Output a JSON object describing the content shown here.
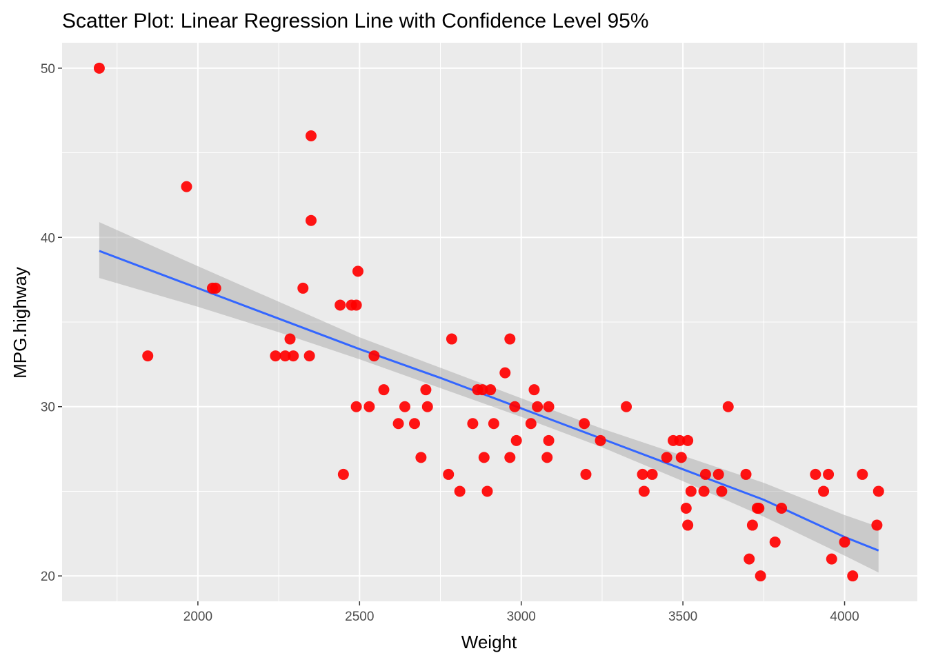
{
  "chart_data": {
    "type": "scatter",
    "title": "Scatter Plot: Linear Regression Line with Confidence Level 95%",
    "xlabel": "Weight",
    "ylabel": "MPG.highway",
    "xlim": [
      1580,
      4225
    ],
    "ylim": [
      18.5,
      51.5
    ],
    "x_ticks": [
      2000,
      2500,
      3000,
      3500,
      4000
    ],
    "y_ticks": [
      20,
      30,
      40,
      50
    ],
    "x_tick_labels": [
      "2000",
      "2500",
      "3000",
      "3500",
      "4000"
    ],
    "y_tick_labels": [
      "20",
      "30",
      "40",
      "50"
    ],
    "grid": true,
    "legend": "none",
    "panel_background": "#ebebeb",
    "grid_color": "#ffffff",
    "point_color": "#ff0000",
    "line_color": "#3366ff",
    "band_color": "#999999",
    "points": [
      [
        1695,
        50
      ],
      [
        1845,
        33
      ],
      [
        1965,
        43
      ],
      [
        2045,
        37
      ],
      [
        2055,
        37
      ],
      [
        2240,
        33
      ],
      [
        2270,
        33
      ],
      [
        2285,
        34
      ],
      [
        2295,
        33
      ],
      [
        2325,
        37
      ],
      [
        2345,
        33
      ],
      [
        2350,
        46
      ],
      [
        2350,
        41
      ],
      [
        2440,
        36
      ],
      [
        2450,
        26
      ],
      [
        2475,
        36
      ],
      [
        2490,
        36
      ],
      [
        2490,
        30
      ],
      [
        2495,
        38
      ],
      [
        2530,
        30
      ],
      [
        2545,
        33
      ],
      [
        2575,
        31
      ],
      [
        2620,
        29
      ],
      [
        2640,
        30
      ],
      [
        2670,
        29
      ],
      [
        2690,
        27
      ],
      [
        2705,
        31
      ],
      [
        2710,
        30
      ],
      [
        2775,
        26
      ],
      [
        2785,
        34
      ],
      [
        2810,
        25
      ],
      [
        2850,
        29
      ],
      [
        2865,
        31
      ],
      [
        2880,
        31
      ],
      [
        2885,
        27
      ],
      [
        2895,
        25
      ],
      [
        2905,
        31
      ],
      [
        2915,
        29
      ],
      [
        2950,
        32
      ],
      [
        2965,
        34
      ],
      [
        2965,
        27
      ],
      [
        2980,
        30
      ],
      [
        2985,
        28
      ],
      [
        3030,
        29
      ],
      [
        3040,
        31
      ],
      [
        3050,
        30
      ],
      [
        3080,
        27
      ],
      [
        3085,
        30
      ],
      [
        3085,
        28
      ],
      [
        3195,
        29
      ],
      [
        3200,
        26
      ],
      [
        3245,
        28
      ],
      [
        3325,
        30
      ],
      [
        3375,
        26
      ],
      [
        3380,
        25
      ],
      [
        3405,
        26
      ],
      [
        3450,
        27
      ],
      [
        3470,
        28
      ],
      [
        3490,
        28
      ],
      [
        3495,
        27
      ],
      [
        3510,
        24
      ],
      [
        3515,
        28
      ],
      [
        3515,
        23
      ],
      [
        3525,
        25
      ],
      [
        3565,
        25
      ],
      [
        3570,
        26
      ],
      [
        3610,
        26
      ],
      [
        3620,
        25
      ],
      [
        3640,
        30
      ],
      [
        3695,
        26
      ],
      [
        3705,
        21
      ],
      [
        3715,
        23
      ],
      [
        3730,
        24
      ],
      [
        3735,
        24
      ],
      [
        3740,
        20
      ],
      [
        3785,
        22
      ],
      [
        3805,
        24
      ],
      [
        3910,
        26
      ],
      [
        3935,
        25
      ],
      [
        3950,
        26
      ],
      [
        3960,
        21
      ],
      [
        4000,
        22
      ],
      [
        4025,
        20
      ],
      [
        4055,
        26
      ],
      [
        4100,
        23
      ],
      [
        4105,
        25
      ]
    ],
    "regression": {
      "x": [
        1695,
        2000,
        2250,
        2500,
        2750,
        3000,
        3250,
        3500,
        3750,
        4000,
        4105
      ],
      "fit": [
        39.2,
        37.0,
        35.2,
        33.4,
        31.7,
        29.9,
        28.1,
        26.3,
        24.5,
        22.3,
        21.5
      ],
      "lower": [
        37.6,
        35.9,
        34.4,
        32.8,
        31.1,
        29.4,
        27.6,
        25.6,
        23.5,
        21.2,
        20.2
      ],
      "upper": [
        40.9,
        38.3,
        36.2,
        34.1,
        32.3,
        30.5,
        28.7,
        27.1,
        25.5,
        23.6,
        22.9
      ]
    }
  }
}
